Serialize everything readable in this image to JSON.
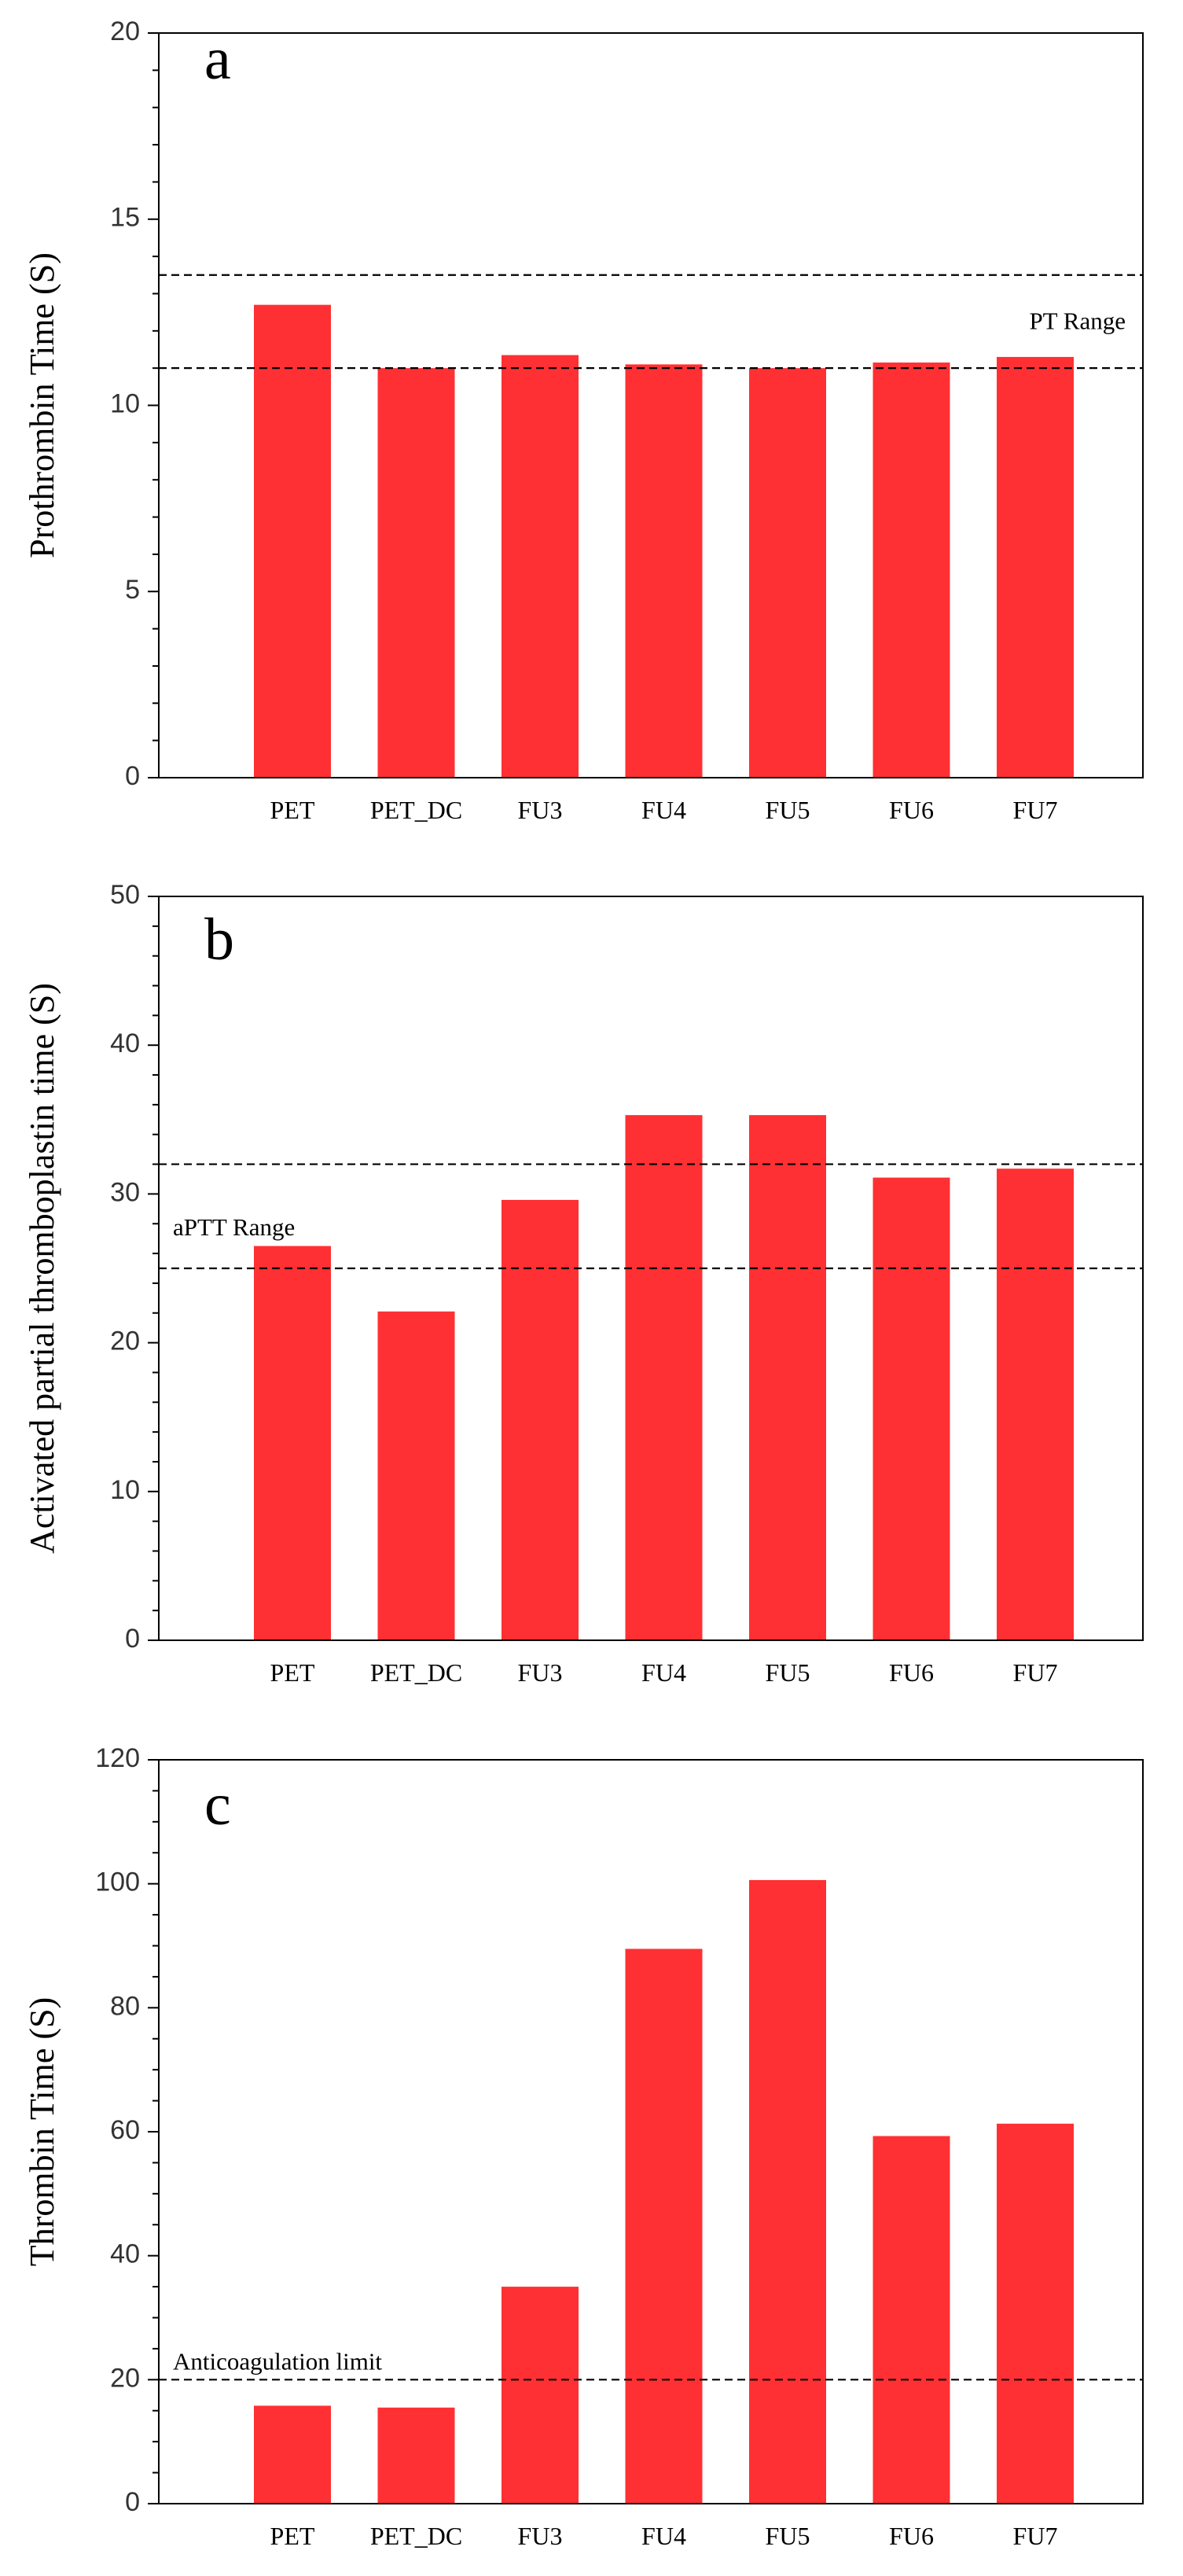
{
  "bar_color": "#ff3033",
  "chart_data": [
    {
      "type": "bar",
      "panel_label": "a",
      "ylabel": "Prothrombin Time (S)",
      "ylim": [
        0,
        20
      ],
      "ytick_step": 5,
      "yticks": [
        "0",
        "5",
        "10",
        "15",
        "20"
      ],
      "minor_divisions": 5,
      "categories": [
        "PET",
        "PET_DC",
        "FU3",
        "FU4",
        "FU5",
        "FU6",
        "FU7"
      ],
      "values": [
        12.7,
        11.0,
        11.35,
        11.1,
        11.0,
        11.15,
        11.3
      ],
      "reference_lines": [
        13.5,
        11.0
      ],
      "reference_label": "PT Range",
      "reference_label_y": 12.2,
      "reference_label_anchor": "end"
    },
    {
      "type": "bar",
      "panel_label": "b",
      "ylabel": "Activated partial thromboplastin time (S)",
      "ylim": [
        0,
        50
      ],
      "ytick_step": 10,
      "yticks": [
        "0",
        "10",
        "20",
        "30",
        "40",
        "50"
      ],
      "minor_divisions": 5,
      "categories": [
        "PET",
        "PET_DC",
        "FU3",
        "FU4",
        "FU5",
        "FU6",
        "FU7"
      ],
      "values": [
        26.5,
        22.1,
        29.6,
        35.3,
        35.3,
        31.1,
        31.7
      ],
      "reference_lines": [
        32,
        25
      ],
      "reference_label": "aPTT Range",
      "reference_label_y": 27.6,
      "reference_label_anchor": "start"
    },
    {
      "type": "bar",
      "panel_label": "c",
      "ylabel": "Thrombin Time (S)",
      "ylim": [
        0,
        120
      ],
      "ytick_step": 20,
      "yticks": [
        "0",
        "20",
        "40",
        "60",
        "80",
        "100",
        "120"
      ],
      "minor_divisions": 4,
      "categories": [
        "PET",
        "PET_DC",
        "FU3",
        "FU4",
        "FU5",
        "FU6",
        "FU7"
      ],
      "values": [
        15.8,
        15.5,
        35.0,
        89.5,
        100.6,
        59.3,
        61.3
      ],
      "reference_lines": [
        20
      ],
      "reference_label": "Anticoagulation limit",
      "reference_label_y": 22.5,
      "reference_label_anchor": "start"
    }
  ]
}
